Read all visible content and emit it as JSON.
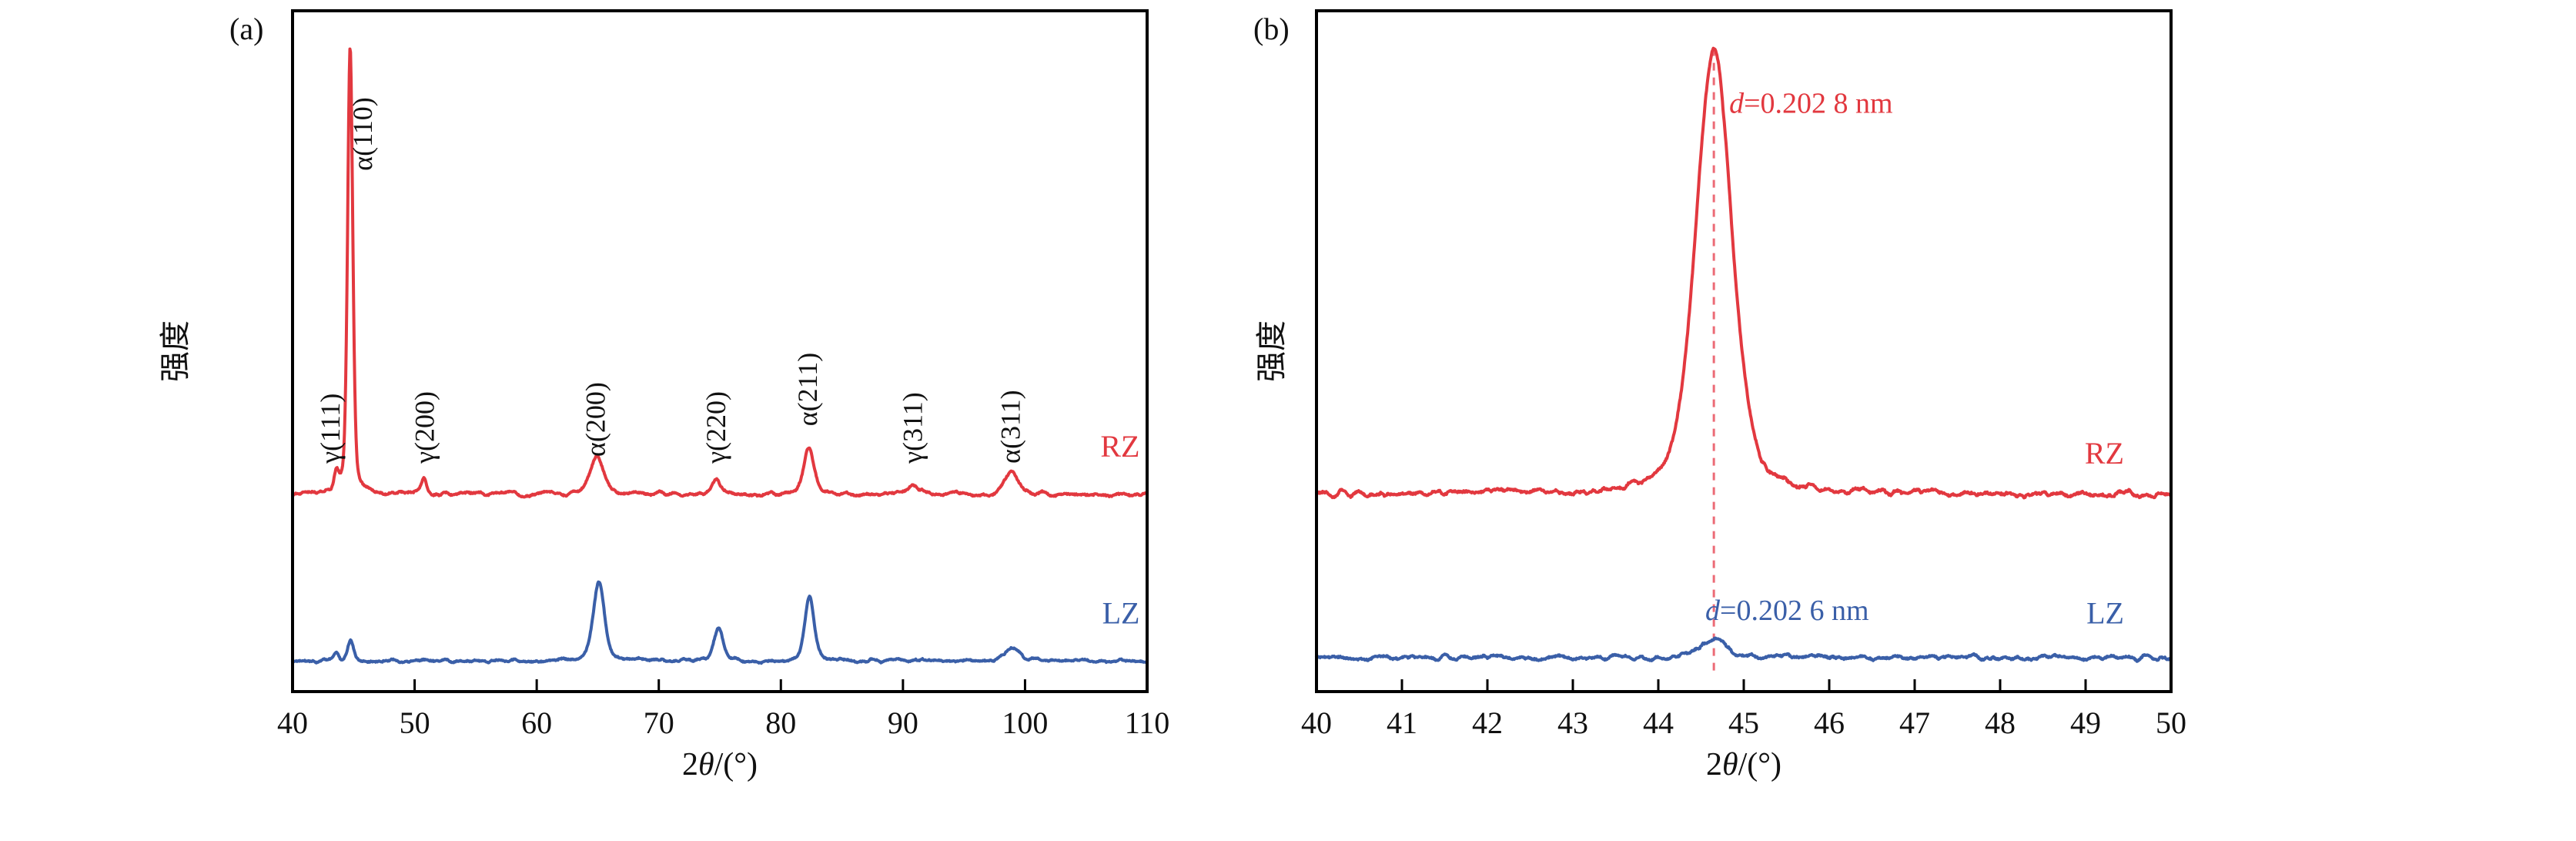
{
  "figure": {
    "background": "#ffffff",
    "colors": {
      "rz": "#e2383f",
      "lz": "#3a5fa8",
      "frame": "#000000",
      "text": "#111111",
      "dashed": "#ec6b76"
    }
  },
  "chart_data": [
    {
      "type": "line",
      "panel_tag": "(a)",
      "xlabel": "2θ/(°)",
      "xlabel_parts": [
        {
          "text": "2"
        },
        {
          "text": "θ",
          "italic": true
        },
        {
          "text": "/(°)"
        }
      ],
      "ylabel": "强度",
      "xlim": [
        40,
        110
      ],
      "x_ticks": [
        40,
        50,
        60,
        70,
        80,
        90,
        100,
        110
      ],
      "grid": false,
      "legend_position": "inline-right",
      "series": [
        {
          "name": "RZ",
          "color_key": "rz",
          "baseline": 0.29,
          "noise_amp": 0.006,
          "label_x": 109.4,
          "label_y": 0.345,
          "peaks": [
            {
              "center": 43.6,
              "height": 0.03,
              "width": 0.45,
              "label": "γ(111)",
              "label_x": 43.1,
              "label_y": 0.335
            },
            {
              "center": 44.72,
              "height": 0.655,
              "width": 0.5,
              "label": "α(110)",
              "label_x": 45.75,
              "label_y": 0.765
            },
            {
              "center": 50.8,
              "height": 0.025,
              "width": 0.5,
              "label": "γ(200)",
              "label_x": 50.8,
              "label_y": 0.335
            },
            {
              "center": 64.9,
              "height": 0.055,
              "width": 1.3,
              "label": "α(200)",
              "label_x": 64.8,
              "label_y": 0.345
            },
            {
              "center": 74.7,
              "height": 0.022,
              "width": 0.9,
              "label": "γ(220)",
              "label_x": 74.7,
              "label_y": 0.335
            },
            {
              "center": 82.3,
              "height": 0.07,
              "width": 1.0,
              "label": "α(211)",
              "label_x": 82.2,
              "label_y": 0.39
            },
            {
              "center": 90.8,
              "height": 0.013,
              "width": 0.9,
              "label": "γ(311)",
              "label_x": 90.8,
              "label_y": 0.335
            },
            {
              "center": 98.9,
              "height": 0.032,
              "width": 1.4,
              "label": "α(311)",
              "label_x": 98.8,
              "label_y": 0.335
            }
          ]
        },
        {
          "name": "LZ",
          "color_key": "lz",
          "baseline": 0.045,
          "noise_amp": 0.005,
          "label_x": 109.4,
          "label_y": 0.1,
          "peaks": [
            {
              "center": 43.6,
              "height": 0.012,
              "width": 0.5
            },
            {
              "center": 44.75,
              "height": 0.03,
              "width": 0.6
            },
            {
              "center": 65.1,
              "height": 0.115,
              "width": 1.1
            },
            {
              "center": 74.9,
              "height": 0.05,
              "width": 0.9
            },
            {
              "center": 82.35,
              "height": 0.095,
              "width": 0.9
            },
            {
              "center": 99.0,
              "height": 0.018,
              "width": 1.5
            }
          ]
        }
      ]
    },
    {
      "type": "line",
      "panel_tag": "(b)",
      "xlabel": "2θ/(°)",
      "xlabel_parts": [
        {
          "text": "2"
        },
        {
          "text": "θ",
          "italic": true
        },
        {
          "text": "/(°)"
        }
      ],
      "ylabel": "强度",
      "xlim": [
        40,
        50
      ],
      "x_ticks": [
        40,
        41,
        42,
        43,
        44,
        45,
        46,
        47,
        48,
        49,
        50
      ],
      "grid": false,
      "reference_line": {
        "x": 44.65,
        "y_top": 0.945,
        "y_bottom": 0.03,
        "style": "dashed"
      },
      "annotations": [
        {
          "text": "d=0.202 8 nm",
          "italic_prefix_chars": 1,
          "color_key": "rz",
          "x": 44.83,
          "y": 0.85
        },
        {
          "text": "d=0.202 6 nm",
          "italic_prefix_chars": 1,
          "color_key": "lz",
          "x": 44.55,
          "y": 0.105
        }
      ],
      "series": [
        {
          "name": "RZ",
          "color_key": "rz",
          "baseline": 0.29,
          "noise_amp": 0.009,
          "label_x": 49.45,
          "label_y": 0.335,
          "peaks": [
            {
              "center": 44.65,
              "height": 0.655,
              "width": 0.5
            }
          ]
        },
        {
          "name": "LZ",
          "color_key": "lz",
          "baseline": 0.05,
          "noise_amp": 0.007,
          "label_x": 49.45,
          "label_y": 0.1,
          "peaks": [
            {
              "center": 44.65,
              "height": 0.028,
              "width": 0.35
            }
          ]
        }
      ]
    }
  ]
}
